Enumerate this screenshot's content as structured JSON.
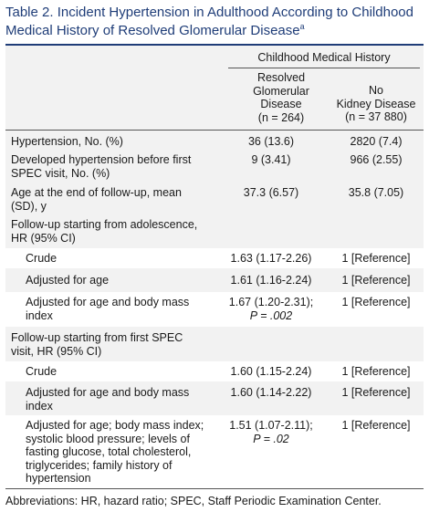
{
  "title": {
    "text": "Table 2. Incident Hypertension in Adulthood According to Childhood Medical History of Resolved Glomerular Disease",
    "superscript": "a"
  },
  "header": {
    "group": "Childhood Medical History",
    "col1": [
      "Resolved",
      "Glomerular",
      "Disease",
      "(n = 264)"
    ],
    "col2": [
      "No",
      "Kidney Disease",
      "(n = 37 880)"
    ]
  },
  "rows": [
    {
      "label": [
        "Hypertension, No. (%)"
      ],
      "c1": [
        "36 (13.6)"
      ],
      "c2": [
        "2820 (7.4)"
      ]
    },
    {
      "label": [
        "Developed hypertension before first",
        "SPEC visit, No. (%)"
      ],
      "c1": [
        "9 (3.41)"
      ],
      "c2": [
        "966 (2.55)"
      ]
    },
    {
      "label": [
        "Age at the end of follow-up, mean",
        "(SD), y"
      ],
      "c1": [
        "37.3 (6.57)"
      ],
      "c2": [
        "35.8 (7.05)"
      ]
    },
    {
      "label": [
        "Follow-up starting from adolescence,",
        "HR (95% CI)"
      ],
      "c1": [],
      "c2": []
    },
    {
      "label": [
        "Crude"
      ],
      "c1": [
        "1.63 (1.17-2.26)"
      ],
      "c2": [
        "1 [Reference]"
      ]
    },
    {
      "label": [
        "Adjusted for age"
      ],
      "c1": [
        "1.61 (1.16-2.24)"
      ],
      "c2": [
        "1 [Reference]"
      ]
    },
    {
      "label": [
        "Adjusted for age and body mass",
        "index"
      ],
      "c1": [
        "1.67 (1.20-2.31);",
        "P = .002"
      ],
      "c2": [
        "1 [Reference]"
      ]
    },
    {
      "label": [
        "Follow-up starting from first SPEC",
        "visit, HR (95% CI)"
      ],
      "c1": [],
      "c2": []
    },
    {
      "label": [
        "Crude"
      ],
      "c1": [
        "1.60 (1.15-2.24)"
      ],
      "c2": [
        "1 [Reference]"
      ]
    },
    {
      "label": [
        "Adjusted for age and body mass",
        "index"
      ],
      "c1": [
        "1.60 (1.14-2.22)"
      ],
      "c2": [
        "1 [Reference]"
      ]
    },
    {
      "label": [
        "Adjusted for age; body mass index;",
        "systolic blood pressure; levels of",
        "fasting glucose, total cholesterol,",
        "triglycerides; family history of",
        "hypertension"
      ],
      "c1": [
        "1.51 (1.07-2.11);",
        "P = .02"
      ],
      "c2": [
        "1 [Reference]"
      ]
    }
  ],
  "footnote": "Abbreviations: HR, hazard ratio; SPEC, Staff Periodic Examination Center."
}
